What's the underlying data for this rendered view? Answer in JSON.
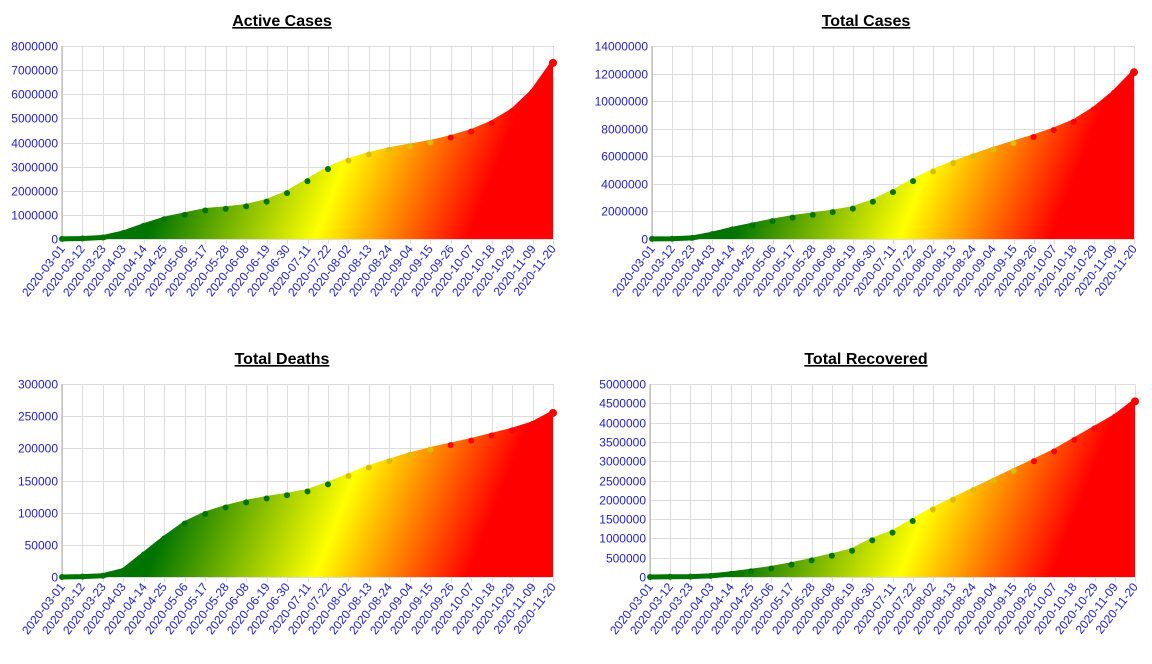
{
  "dates": [
    "2020-03-01",
    "2020-03-12",
    "2020-03-23",
    "2020-04-03",
    "2020-04-14",
    "2020-04-25",
    "2020-05-06",
    "2020-05-17",
    "2020-05-28",
    "2020-06-08",
    "2020-06-19",
    "2020-06-30",
    "2020-07-11",
    "2020-07-22",
    "2020-08-02",
    "2020-08-13",
    "2020-08-24",
    "2020-09-04",
    "2020-09-15",
    "2020-09-26",
    "2020-10-07",
    "2020-10-18",
    "2020-10-29",
    "2020-11-09",
    "2020-11-20"
  ],
  "colors": {
    "green": "#007400",
    "yellow": "#ffff00",
    "red": "#ff0000",
    "tick": "#2222cc",
    "grid": "#dddddd"
  },
  "chart_data": [
    {
      "type": "area",
      "title": "Active Cases",
      "ylim": [
        0,
        8000000
      ],
      "yticks": [
        0,
        1000000,
        2000000,
        3000000,
        4000000,
        5000000,
        6000000,
        7000000,
        8000000
      ],
      "ytick_labels": [
        "0",
        "1000000",
        "2000000",
        "3000000",
        "4000000",
        "5000000",
        "6000000",
        "7000000",
        "8000000"
      ],
      "values": [
        5000,
        20000,
        60000,
        250000,
        550000,
        820000,
        1000000,
        1180000,
        1250000,
        1350000,
        1550000,
        1900000,
        2400000,
        2900000,
        3250000,
        3500000,
        3700000,
        3850000,
        4000000,
        4200000,
        4450000,
        4800000,
        5300000,
        6100000,
        7300000
      ]
    },
    {
      "type": "area",
      "title": "Total Cases",
      "ylim": [
        0,
        14000000
      ],
      "yticks": [
        0,
        2000000,
        4000000,
        6000000,
        8000000,
        10000000,
        12000000,
        14000000
      ],
      "ytick_labels": [
        "0",
        "2000000",
        "4000000",
        "6000000",
        "8000000",
        "10000000",
        "12000000",
        "14000000"
      ],
      "values": [
        5000,
        20000,
        80000,
        350000,
        700000,
        1000000,
        1300000,
        1550000,
        1750000,
        1950000,
        2200000,
        2700000,
        3400000,
        4200000,
        4900000,
        5500000,
        6000000,
        6500000,
        6950000,
        7400000,
        7900000,
        8500000,
        9400000,
        10600000,
        12100000
      ]
    },
    {
      "type": "area",
      "title": "Total Deaths",
      "ylim": [
        0,
        300000
      ],
      "yticks": [
        0,
        50000,
        100000,
        150000,
        200000,
        250000,
        300000
      ],
      "ytick_labels": [
        "0",
        "50000",
        "100000",
        "150000",
        "200000",
        "250000",
        "300000"
      ],
      "values": [
        0,
        500,
        2000,
        10000,
        35000,
        60000,
        83000,
        98000,
        108000,
        116000,
        122000,
        127000,
        133000,
        144000,
        157000,
        170000,
        180000,
        190000,
        198000,
        205000,
        212000,
        220000,
        228000,
        238000,
        255000
      ]
    },
    {
      "type": "area",
      "title": "Total Recovered",
      "ylim": [
        0,
        5000000
      ],
      "yticks": [
        0,
        500000,
        1000000,
        1500000,
        2000000,
        2500000,
        3000000,
        3500000,
        4000000,
        4500000,
        5000000
      ],
      "ytick_labels": [
        "0",
        "500000",
        "1000000",
        "1500000",
        "2000000",
        "2500000",
        "3000000",
        "3500000",
        "4000000",
        "4500000",
        "5000000"
      ],
      "values": [
        0,
        5000,
        10000,
        30000,
        80000,
        150000,
        220000,
        320000,
        430000,
        550000,
        680000,
        950000,
        1150000,
        1450000,
        1750000,
        2000000,
        2250000,
        2500000,
        2750000,
        3000000,
        3250000,
        3550000,
        3850000,
        4150000,
        4550000
      ]
    }
  ]
}
